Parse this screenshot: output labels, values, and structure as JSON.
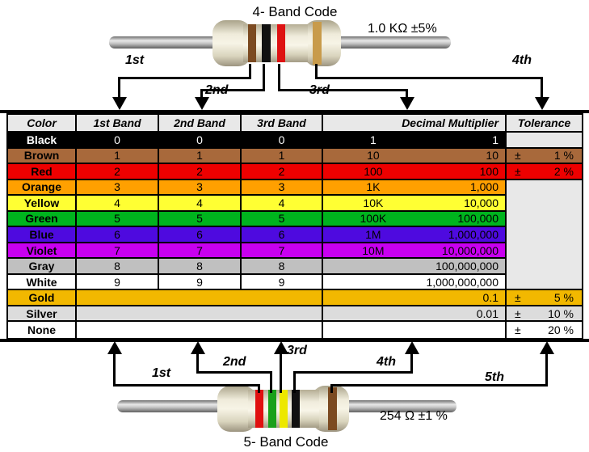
{
  "top_code": {
    "title": "4- Band Code",
    "value_label": "1.0 KΩ ±5%",
    "bands": [
      "brown",
      "black",
      "red",
      "gold"
    ],
    "band_colors": [
      "#7B4A21",
      "#111111",
      "#DE1212",
      "#C89B4B"
    ],
    "arrows": [
      {
        "label": "1st"
      },
      {
        "label": "2nd"
      },
      {
        "label": "3rd"
      },
      {
        "label": "4th"
      }
    ]
  },
  "bottom_code": {
    "title": "5- Band Code",
    "value_label": "254 Ω ±1 %",
    "bands": [
      "red",
      "green",
      "yellow",
      "black",
      "brown"
    ],
    "band_colors": [
      "#E01010",
      "#1AA01A",
      "#EDE800",
      "#111111",
      "#7B4A21"
    ],
    "arrows": [
      {
        "label": "1st"
      },
      {
        "label": "2nd"
      },
      {
        "label": "3rd"
      },
      {
        "label": "4th"
      },
      {
        "label": "5th"
      }
    ]
  },
  "table": {
    "pm": "±",
    "header_bg": "#E8E8E8",
    "headers": [
      "Color",
      "1st Band",
      "2nd Band",
      "3rd Band",
      "Decimal Multiplier",
      "Tolerance"
    ],
    "rows": [
      {
        "color": "Black",
        "bg": "#000000",
        "fg": "#FFFFFF",
        "bands": [
          "0",
          "0",
          "0"
        ],
        "mult_short": "1",
        "mult_long": "1",
        "tolerance": null,
        "tol_bg": "#E8E8E8"
      },
      {
        "color": "Brown",
        "bg": "#A8693B",
        "fg": "#000000",
        "bands": [
          "1",
          "1",
          "1"
        ],
        "mult_short": "10",
        "mult_long": "10",
        "tolerance": "1 %",
        "tol_bg": "#A8693B"
      },
      {
        "color": "Red",
        "bg": "#EE0000",
        "fg": "#000000",
        "bands": [
          "2",
          "2",
          "2"
        ],
        "mult_short": "100",
        "mult_long": "100",
        "tolerance": "2 %",
        "tol_bg": "#EE0000"
      },
      {
        "color": "Orange",
        "bg": "#FFA000",
        "fg": "#000000",
        "bands": [
          "3",
          "3",
          "3"
        ],
        "mult_short": "1K",
        "mult_long": "1,000",
        "tolerance": null,
        "tol_bg": "#E8E8E8",
        "tol_no_border": true
      },
      {
        "color": "Yellow",
        "bg": "#FFFF33",
        "fg": "#000000",
        "bands": [
          "4",
          "4",
          "4"
        ],
        "mult_short": "10K",
        "mult_long": "10,000",
        "tolerance": null,
        "tol_bg": "#E8E8E8",
        "tol_no_border": true
      },
      {
        "color": "Green",
        "bg": "#00B41E",
        "fg": "#000000",
        "bands": [
          "5",
          "5",
          "5"
        ],
        "mult_short": "100K",
        "mult_long": "100,000",
        "tolerance": null,
        "tol_bg": "#E8E8E8",
        "tol_no_border": true
      },
      {
        "color": "Blue",
        "bg": "#4E0ADF",
        "fg": "#000000",
        "bands": [
          "6",
          "6",
          "6"
        ],
        "mult_short": "1M",
        "mult_long": "1,000,000",
        "tolerance": null,
        "tol_bg": "#E8E8E8",
        "tol_no_border": true
      },
      {
        "color": "Violet",
        "bg": "#C800F0",
        "fg": "#000000",
        "bands": [
          "7",
          "7",
          "7"
        ],
        "mult_short": "10M",
        "mult_long": "10,000,000",
        "tolerance": null,
        "tol_bg": "#E8E8E8",
        "tol_no_border": true
      },
      {
        "color": "Gray",
        "bg": "#C0C0C0",
        "fg": "#000000",
        "bands": [
          "8",
          "8",
          "8"
        ],
        "mult_short": "",
        "mult_long": "100,000,000",
        "tolerance": null,
        "tol_bg": "#E8E8E8",
        "tol_no_border": true
      },
      {
        "color": "White",
        "bg": "#FFFFFF",
        "fg": "#000000",
        "bands": [
          "9",
          "9",
          "9"
        ],
        "mult_short": "",
        "mult_long": "1,000,000,000",
        "tolerance": null,
        "tol_bg": "#E8E8E8"
      },
      {
        "color": "Gold",
        "bg": "#F2B800",
        "fg": "#000000",
        "bands_merged": true,
        "mult_short": "",
        "mult_long": "0.1",
        "tolerance": "5 %",
        "tol_bg": "#F2B800"
      },
      {
        "color": "Silver",
        "bg": "#DCDCDC",
        "fg": "#000000",
        "bands_merged": true,
        "mult_short": "",
        "mult_long": "0.01",
        "tolerance": "10 %",
        "tol_bg": "#DCDCDC"
      },
      {
        "color": "None",
        "bg": "#FFFFFF",
        "fg": "#000000",
        "bands_merged": true,
        "mult_short": "",
        "mult_long": "",
        "tolerance": "20 %",
        "tol_bg": "#FFFFFF"
      }
    ]
  }
}
